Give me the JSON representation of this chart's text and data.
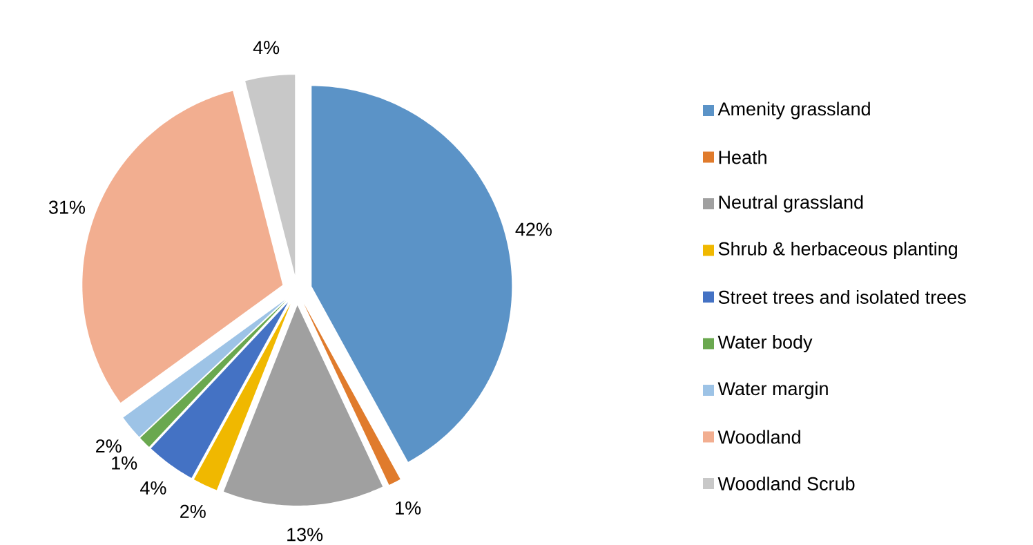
{
  "chart_data": {
    "type": "pie",
    "categories": [
      "Amenity grassland",
      "Heath",
      "Neutral grassland",
      "Shrub & herbaceous planting",
      "Street trees and isolated trees",
      "Water body",
      "Water margin",
      "Woodland",
      "Woodland Scrub"
    ],
    "values": [
      42,
      1,
      13,
      2,
      4,
      1,
      2,
      31,
      4
    ],
    "value_labels": [
      "42%",
      "1%",
      "13%",
      "2%",
      "4%",
      "1%",
      "2%",
      "31%",
      "4%"
    ],
    "colors": [
      "#5b93c7",
      "#e07b2c",
      "#a0a0a0",
      "#f0b800",
      "#4472c4",
      "#6aa84f",
      "#9dc3e6",
      "#f2ae90",
      "#c8c8c8"
    ],
    "legend": "right"
  }
}
